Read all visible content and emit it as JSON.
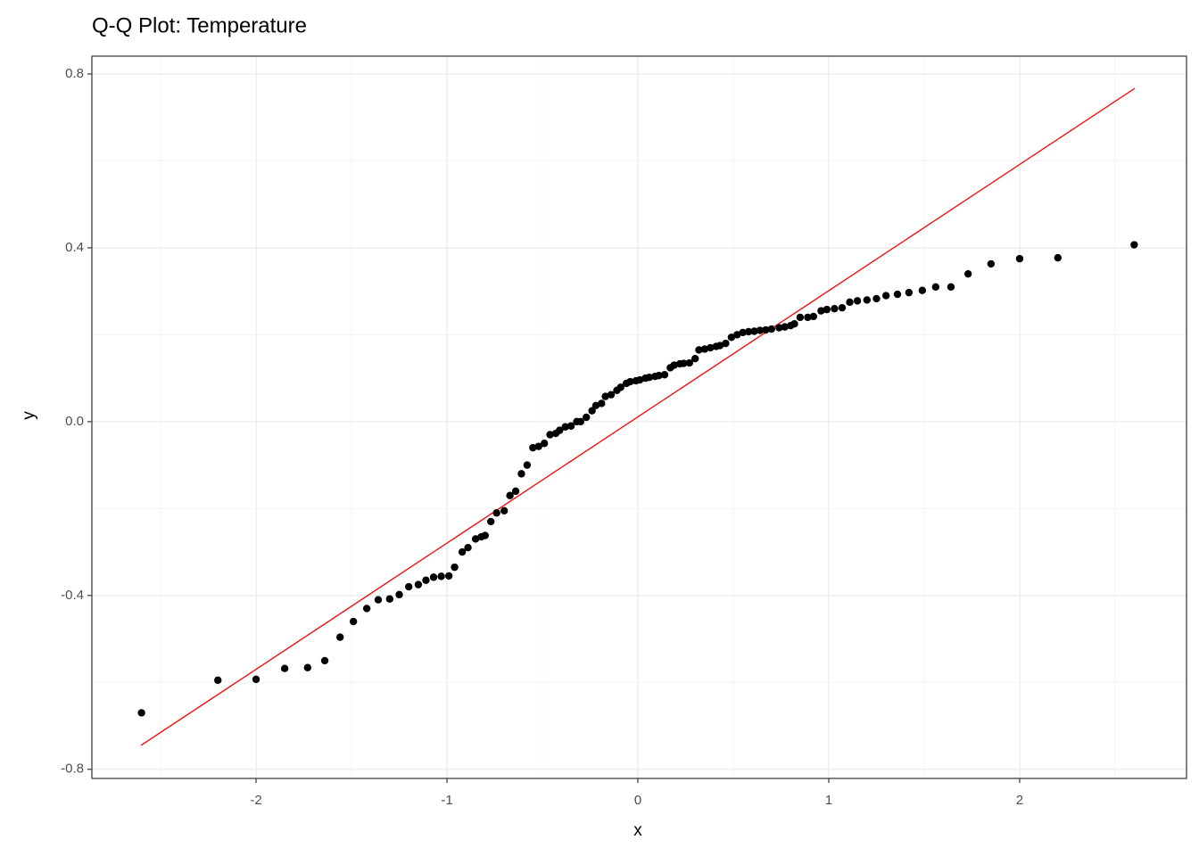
{
  "chart_data": {
    "type": "scatter",
    "title": "Q-Q Plot: Temperature",
    "x_label": "x",
    "y_label": "y",
    "xlim": [
      -2.86,
      2.874
    ],
    "ylim": [
      -0.821,
      0.841
    ],
    "xticks": [
      -2,
      -1,
      0,
      1,
      2
    ],
    "yticks": [
      -0.8,
      -0.4,
      {
        "value": 0,
        "label": "0.0"
      },
      0.4,
      0.8
    ],
    "x_minor_ticks": [
      -2.5,
      -1.5,
      -0.5,
      0.5,
      1.5,
      2.5
    ],
    "y_minor_ticks": [
      -0.6,
      -0.2,
      0.2,
      0.6
    ],
    "grid": true,
    "series": [
      {
        "color": "#000000",
        "x": [
          -2.6,
          -2.2,
          -2.0,
          -1.85,
          -1.73,
          -1.64,
          -1.56,
          -1.49,
          -1.42,
          -1.36,
          -1.3,
          -1.25,
          -1.2,
          -1.15,
          -1.11,
          -1.07,
          -1.03,
          -0.99,
          -0.96,
          -0.92,
          -0.89,
          -0.85,
          -0.82,
          -0.8,
          -0.77,
          -0.74,
          -0.7,
          -0.67,
          -0.64,
          -0.61,
          -0.58,
          -0.55,
          -0.52,
          -0.49,
          -0.46,
          -0.43,
          -0.41,
          -0.38,
          -0.35,
          -0.32,
          -0.3,
          -0.27,
          -0.24,
          -0.22,
          -0.19,
          -0.17,
          -0.14,
          -0.11,
          -0.09,
          -0.06,
          -0.04,
          -0.01,
          0.01,
          0.04,
          0.06,
          0.09,
          0.11,
          0.14,
          0.17,
          0.19,
          0.22,
          0.24,
          0.27,
          0.3,
          0.32,
          0.35,
          0.38,
          0.41,
          0.43,
          0.46,
          0.49,
          0.52,
          0.55,
          0.58,
          0.61,
          0.64,
          0.67,
          0.7,
          0.74,
          0.77,
          0.8,
          0.82,
          0.85,
          0.89,
          0.92,
          0.96,
          0.99,
          1.03,
          1.07,
          1.11,
          1.15,
          1.2,
          1.25,
          1.3,
          1.36,
          1.42,
          1.49,
          1.56,
          1.64,
          1.73,
          1.85,
          2.0,
          2.2,
          2.6
        ],
        "values": [
          -0.67,
          -0.595,
          -0.593,
          -0.568,
          -0.566,
          -0.55,
          -0.496,
          -0.46,
          -0.43,
          -0.41,
          -0.408,
          -0.398,
          -0.38,
          -0.375,
          -0.365,
          -0.358,
          -0.356,
          -0.355,
          -0.335,
          -0.3,
          -0.29,
          -0.27,
          -0.265,
          -0.262,
          -0.23,
          -0.21,
          -0.205,
          -0.17,
          -0.16,
          -0.12,
          -0.1,
          -0.06,
          -0.057,
          -0.05,
          -0.03,
          -0.027,
          -0.02,
          -0.012,
          -0.01,
          0.0,
          0.0,
          0.01,
          0.025,
          0.037,
          0.042,
          0.058,
          0.062,
          0.072,
          0.079,
          0.088,
          0.092,
          0.094,
          0.096,
          0.1,
          0.102,
          0.104,
          0.106,
          0.108,
          0.124,
          0.13,
          0.133,
          0.134,
          0.135,
          0.145,
          0.165,
          0.167,
          0.17,
          0.173,
          0.175,
          0.18,
          0.194,
          0.2,
          0.205,
          0.207,
          0.208,
          0.21,
          0.211,
          0.213,
          0.216,
          0.218,
          0.221,
          0.225,
          0.24,
          0.24,
          0.242,
          0.255,
          0.258,
          0.26,
          0.262,
          0.275,
          0.278,
          0.28,
          0.283,
          0.29,
          0.293,
          0.297,
          0.302,
          0.31,
          0.31,
          0.34,
          0.363,
          0.375,
          0.377,
          0.407
        ]
      }
    ],
    "reference_line": {
      "x": [
        -2.603,
        2.603
      ],
      "y": [
        -0.745,
        0.767
      ],
      "color": "#ff0000"
    }
  }
}
